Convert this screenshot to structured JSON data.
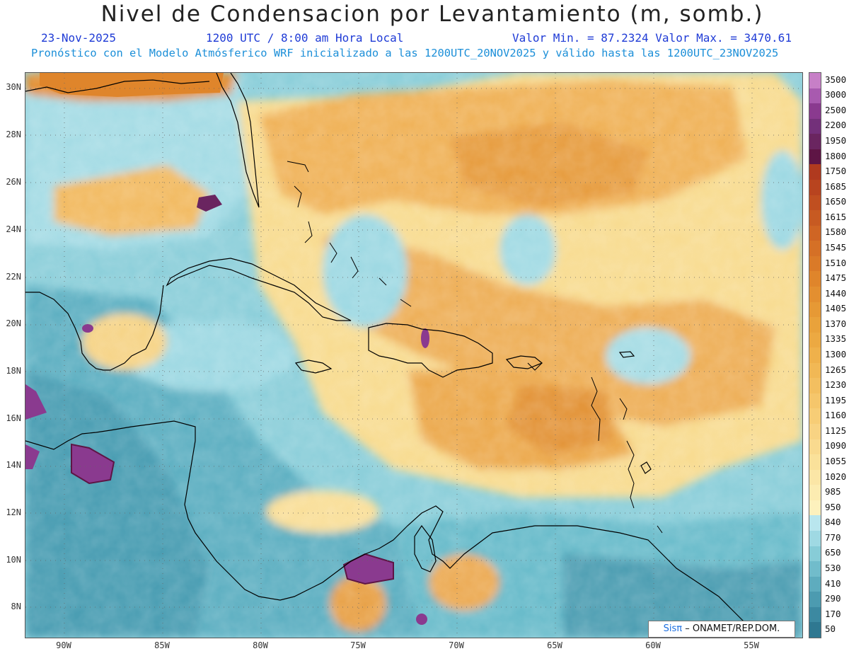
{
  "header": {
    "title": "Nivel de Condensacion por Levantamiento (m, somb.)",
    "date": "23-Nov-2025",
    "time": "1200 UTC / 8:00 am Hora Local",
    "minmax": "Valor Min. = 87.2324  Valor Max. = 3470.61",
    "model_line": "Pronóstico con el Modelo Atmósferico WRF inicializado a las 1200UTC_20NOV2025 y válido hasta las  1200UTC_23NOV2025"
  },
  "axes": {
    "lat_labels": [
      "30N",
      "28N",
      "26N",
      "24N",
      "22N",
      "20N",
      "18N",
      "16N",
      "14N",
      "12N",
      "10N",
      "8N"
    ],
    "lon_labels": [
      "90W",
      "85W",
      "80W",
      "75W",
      "70W",
      "65W",
      "60W",
      "55W"
    ]
  },
  "colorbar": {
    "labels": [
      "3500",
      "3000",
      "2500",
      "2200",
      "1950",
      "1800",
      "1750",
      "1685",
      "1650",
      "1615",
      "1580",
      "1545",
      "1510",
      "1475",
      "1440",
      "1405",
      "1370",
      "1335",
      "1300",
      "1265",
      "1230",
      "1195",
      "1160",
      "1125",
      "1090",
      "1055",
      "1020",
      "985",
      "950",
      "840",
      "770",
      "650",
      "530",
      "410",
      "290",
      "170",
      "50"
    ],
    "colors": [
      "#c77fc7",
      "#a85aaf",
      "#8a3a8f",
      "#73307a",
      "#6a2560",
      "#5e1545",
      "#b03a1f",
      "#b8441f",
      "#c04f20",
      "#c75a22",
      "#cf6524",
      "#d57026",
      "#da7a28",
      "#df852b",
      "#e38f30",
      "#e69935",
      "#e9a23b",
      "#eca942",
      "#efb14b",
      "#f1b855",
      "#f3bf60",
      "#f5c66b",
      "#f7cd76",
      "#f8d383",
      "#f9da8f",
      "#fae19a",
      "#fbe6a6",
      "#fcecb1",
      "#fdf1bd",
      "#b9e6ee",
      "#9fd9e3",
      "#87ccd7",
      "#71bccb",
      "#5eacbe",
      "#4c9bb0",
      "#3c89a1",
      "#2f7891"
    ]
  },
  "credit": {
    "sis": "Sisπ",
    "rest": "– ONAMET/REP.DOM."
  },
  "map_info": {
    "variable": "Lifted condensation level",
    "units": "m",
    "region": "Caribbean basin",
    "lat_range": [
      6.8,
      30.6
    ],
    "lon_range": [
      -92,
      -52.5
    ]
  }
}
